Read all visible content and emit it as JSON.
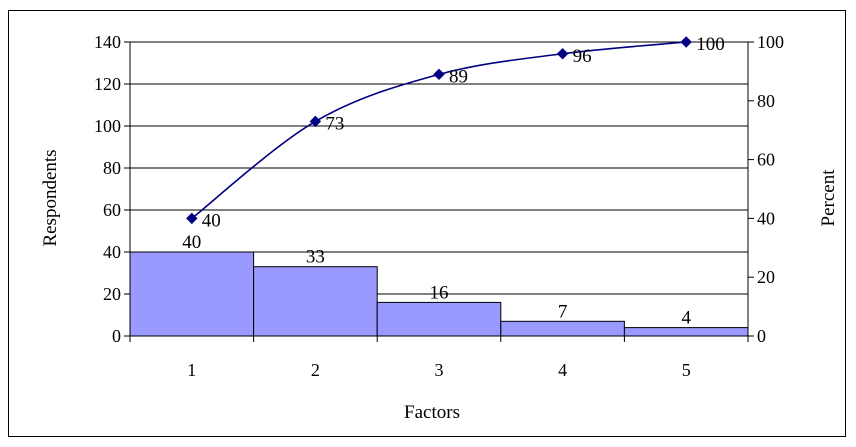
{
  "chart_data": {
    "type": "bar",
    "categories": [
      "1",
      "2",
      "3",
      "4",
      "5"
    ],
    "series": [
      {
        "type": "bar",
        "axis": "left",
        "values": [
          40,
          33,
          16,
          7,
          4
        ],
        "color": "#9999ff"
      },
      {
        "type": "line",
        "axis": "right",
        "values": [
          40,
          73,
          89,
          96,
          100
        ],
        "color": "#000080"
      }
    ],
    "xlabel": "Factors",
    "ylabel": "Respondents",
    "y2label": "Percent",
    "ylim": [
      0,
      140
    ],
    "y2lim": [
      0,
      100
    ],
    "yticks": [
      0,
      20,
      40,
      60,
      80,
      100,
      120,
      140
    ],
    "y2ticks": [
      0,
      20,
      40,
      60,
      80,
      100
    ],
    "grid": true,
    "legend": "none"
  }
}
